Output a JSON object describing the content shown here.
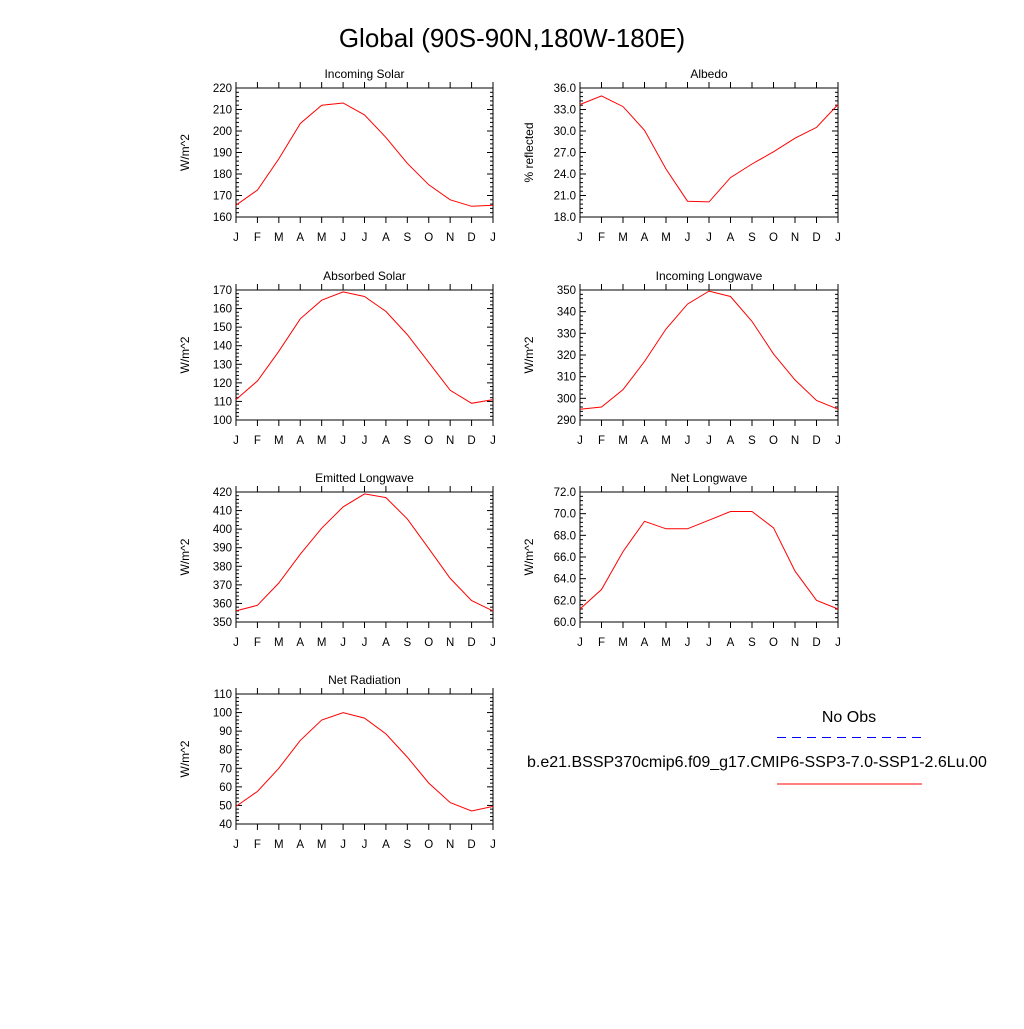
{
  "page": {
    "title": "Global (90S-90N,180W-180E)"
  },
  "colors": {
    "model_line": "#ff0000",
    "obs_line": "#0000ff",
    "axis": "#000000"
  },
  "legend": {
    "obs_label": "No Obs",
    "model_label": "b.e21.BSSP370cmip6.f09_g17.CMIP6-SSP3-7.0-SSP1-2.6Lu.00"
  },
  "chart_data": [
    {
      "type": "line",
      "title": "Incoming Solar",
      "ylabel": "W/m^2",
      "categories": [
        "J",
        "F",
        "M",
        "A",
        "M",
        "J",
        "J",
        "A",
        "S",
        "O",
        "N",
        "D",
        "J"
      ],
      "ylim": [
        160,
        220
      ],
      "yticks": [
        "160",
        "170",
        "180",
        "190",
        "200",
        "210",
        "220"
      ],
      "series": [
        {
          "values": [
            165.5,
            172.5,
            187,
            203.5,
            212,
            213,
            207.5,
            197,
            185,
            175,
            168,
            165,
            165.5
          ]
        }
      ]
    },
    {
      "type": "line",
      "title": "Albedo",
      "ylabel": "% reflected",
      "categories": [
        "J",
        "F",
        "M",
        "A",
        "M",
        "J",
        "J",
        "A",
        "S",
        "O",
        "N",
        "D",
        "J"
      ],
      "ylim": [
        18,
        36
      ],
      "yticks": [
        "18.0",
        "21.0",
        "24.0",
        "27.0",
        "30.0",
        "33.0",
        "36.0"
      ],
      "series": [
        {
          "values": [
            33.7,
            34.9,
            33.4,
            30.1,
            24.7,
            20.2,
            20.1,
            23.5,
            25.4,
            27.1,
            29.0,
            30.5,
            33.7
          ]
        }
      ]
    },
    {
      "type": "line",
      "title": "Absorbed Solar",
      "ylabel": "W/m^2",
      "categories": [
        "J",
        "F",
        "M",
        "A",
        "M",
        "J",
        "J",
        "A",
        "S",
        "O",
        "N",
        "D",
        "J"
      ],
      "ylim": [
        100,
        170
      ],
      "yticks": [
        "100",
        "110",
        "120",
        "130",
        "140",
        "150",
        "160",
        "170"
      ],
      "series": [
        {
          "values": [
            111,
            121,
            137,
            154.5,
            164.5,
            169,
            166.5,
            158.5,
            146,
            131,
            116,
            109,
            111
          ]
        }
      ]
    },
    {
      "type": "line",
      "title": "Incoming Longwave",
      "ylabel": "W/m^2",
      "categories": [
        "J",
        "F",
        "M",
        "A",
        "M",
        "J",
        "J",
        "A",
        "S",
        "O",
        "N",
        "D",
        "J"
      ],
      "ylim": [
        290,
        350
      ],
      "yticks": [
        "290",
        "300",
        "310",
        "320",
        "330",
        "340",
        "350"
      ],
      "series": [
        {
          "values": [
            295,
            296,
            304,
            317,
            332,
            343.5,
            349.5,
            347,
            335.5,
            320.5,
            308.5,
            299,
            295
          ]
        }
      ]
    },
    {
      "type": "line",
      "title": "Emitted Longwave",
      "ylabel": "W/m^2",
      "categories": [
        "J",
        "F",
        "M",
        "A",
        "M",
        "J",
        "J",
        "A",
        "S",
        "O",
        "N",
        "D",
        "J"
      ],
      "ylim": [
        350,
        420
      ],
      "yticks": [
        "350",
        "360",
        "370",
        "380",
        "390",
        "400",
        "410",
        "420"
      ],
      "series": [
        {
          "values": [
            356,
            359,
            371,
            386.5,
            400.5,
            412,
            419,
            417,
            405.5,
            389.5,
            373.5,
            361.5,
            356
          ]
        }
      ]
    },
    {
      "type": "line",
      "title": "Net Longwave",
      "ylabel": "W/m^2",
      "categories": [
        "J",
        "F",
        "M",
        "A",
        "M",
        "J",
        "J",
        "A",
        "S",
        "O",
        "N",
        "D",
        "J"
      ],
      "ylim": [
        60,
        72
      ],
      "yticks": [
        "60.0",
        "62.0",
        "64.0",
        "66.0",
        "68.0",
        "70.0",
        "72.0"
      ],
      "series": [
        {
          "values": [
            61.2,
            63.0,
            66.5,
            69.3,
            68.6,
            68.6,
            69.4,
            70.2,
            70.2,
            68.7,
            64.7,
            62.0,
            61.2
          ]
        }
      ]
    },
    {
      "type": "line",
      "title": "Net Radiation",
      "ylabel": "W/m^2",
      "categories": [
        "J",
        "F",
        "M",
        "A",
        "M",
        "J",
        "J",
        "A",
        "S",
        "O",
        "N",
        "D",
        "J"
      ],
      "ylim": [
        40,
        110
      ],
      "yticks": [
        "40",
        "50",
        "60",
        "70",
        "80",
        "90",
        "100",
        "110"
      ],
      "series": [
        {
          "values": [
            49.5,
            57.5,
            70,
            85,
            96,
            100,
            97,
            88.5,
            76,
            62,
            51.5,
            47,
            49.5
          ]
        }
      ]
    }
  ]
}
